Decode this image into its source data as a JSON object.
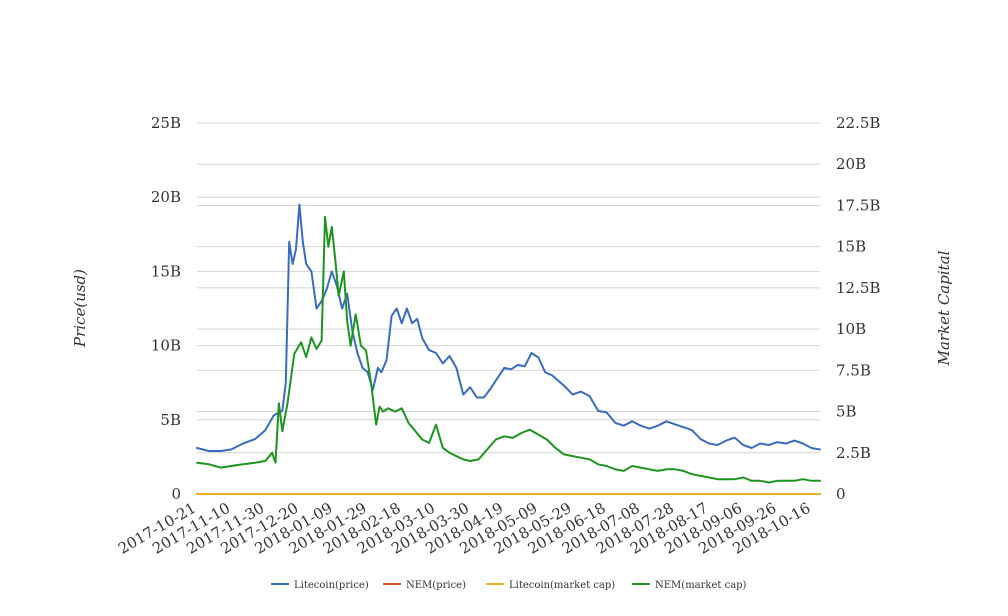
{
  "chart_data": {
    "type": "line",
    "title": "",
    "ylabel": "Price(usd)",
    "y2label": "Market Capital",
    "ylim": [
      0,
      25000000000
    ],
    "y2lim": [
      0,
      22500000000
    ],
    "yticks": [
      "0",
      "5B",
      "10B",
      "15B",
      "20B",
      "25B"
    ],
    "y2ticks": [
      "0",
      "2.5B",
      "5B",
      "7.5B",
      "10B",
      "12.5B",
      "15B",
      "17.5B",
      "20B",
      "22.5B"
    ],
    "xticks": [
      "2017-10-21",
      "2017-11-10",
      "2017-11-30",
      "2017-12-20",
      "2018-01-09",
      "2018-01-29",
      "2018-02-18",
      "2018-03-10",
      "2018-03-30",
      "2018-04-19",
      "2018-05-09",
      "2018-05-29",
      "2018-06-18",
      "2018-07-08",
      "2018-07-28",
      "2018-08-17",
      "2018-09-06",
      "2018-09-26",
      "2018-10-16"
    ],
    "xrange": [
      "2017-10-21",
      "2018-10-21"
    ],
    "grid": true,
    "legend_position": "bottom",
    "series": [
      {
        "name": "Litecoin(price)",
        "color": "#3a6cc4",
        "axis": "left",
        "x": [
          "2017-10-21",
          "2017-10-28",
          "2017-11-04",
          "2017-11-10",
          "2017-11-17",
          "2017-11-24",
          "2017-11-30",
          "2017-12-05",
          "2017-12-10",
          "2017-12-12",
          "2017-12-14",
          "2017-12-16",
          "2017-12-18",
          "2017-12-20",
          "2017-12-22",
          "2017-12-24",
          "2017-12-27",
          "2017-12-30",
          "2018-01-02",
          "2018-01-05",
          "2018-01-08",
          "2018-01-11",
          "2018-01-14",
          "2018-01-17",
          "2018-01-20",
          "2018-01-23",
          "2018-01-26",
          "2018-01-29",
          "2018-02-01",
          "2018-02-04",
          "2018-02-06",
          "2018-02-09",
          "2018-02-12",
          "2018-02-15",
          "2018-02-18",
          "2018-02-21",
          "2018-02-24",
          "2018-02-27",
          "2018-03-02",
          "2018-03-06",
          "2018-03-10",
          "2018-03-14",
          "2018-03-18",
          "2018-03-22",
          "2018-03-26",
          "2018-03-30",
          "2018-04-03",
          "2018-04-07",
          "2018-04-11",
          "2018-04-15",
          "2018-04-19",
          "2018-04-23",
          "2018-04-27",
          "2018-05-01",
          "2018-05-05",
          "2018-05-09",
          "2018-05-13",
          "2018-05-17",
          "2018-05-21",
          "2018-05-25",
          "2018-05-29",
          "2018-06-03",
          "2018-06-08",
          "2018-06-13",
          "2018-06-18",
          "2018-06-23",
          "2018-06-28",
          "2018-07-03",
          "2018-07-08",
          "2018-07-13",
          "2018-07-18",
          "2018-07-23",
          "2018-07-28",
          "2018-08-02",
          "2018-08-07",
          "2018-08-12",
          "2018-08-17",
          "2018-08-22",
          "2018-08-27",
          "2018-09-01",
          "2018-09-06",
          "2018-09-11",
          "2018-09-16",
          "2018-09-21",
          "2018-09-26",
          "2018-10-01",
          "2018-10-06",
          "2018-10-11",
          "2018-10-16",
          "2018-10-21"
        ],
        "values": [
          3100000000,
          2900000000,
          2900000000,
          3000000000,
          3400000000,
          3700000000,
          4300000000,
          5300000000,
          5600000000,
          7500000000,
          17000000000,
          15500000000,
          16500000000,
          19500000000,
          17000000000,
          15500000000,
          15000000000,
          12500000000,
          13000000000,
          13800000000,
          15000000000,
          14000000000,
          12500000000,
          13500000000,
          11000000000,
          9500000000,
          8500000000,
          8200000000,
          7000000000,
          8500000000,
          8200000000,
          9000000000,
          12000000000,
          12500000000,
          11500000000,
          12500000000,
          11500000000,
          11800000000,
          10500000000,
          9700000000,
          9500000000,
          8800000000,
          9300000000,
          8500000000,
          6700000000,
          7200000000,
          6500000000,
          6500000000,
          7100000000,
          7800000000,
          8500000000,
          8400000000,
          8700000000,
          8600000000,
          9500000000,
          9200000000,
          8200000000,
          8000000000,
          7600000000,
          7200000000,
          6700000000,
          6900000000,
          6600000000,
          5600000000,
          5500000000,
          4800000000,
          4600000000,
          4900000000,
          4600000000,
          4400000000,
          4600000000,
          4900000000,
          4700000000,
          4500000000,
          4300000000,
          3700000000,
          3400000000,
          3300000000,
          3600000000,
          3800000000,
          3300000000,
          3100000000,
          3400000000,
          3300000000,
          3500000000,
          3400000000,
          3600000000,
          3400000000,
          3100000000,
          3000000000
        ]
      },
      {
        "name": "NEM(price)",
        "color": "#d9541e",
        "axis": "left",
        "x": [
          "2017-10-21",
          "2018-10-21"
        ],
        "values": [
          0,
          0
        ]
      },
      {
        "name": "Litecoin(market cap)",
        "color": "#edb120",
        "axis": "right",
        "x": [
          "2017-10-21",
          "2018-10-21"
        ],
        "values": [
          0,
          0
        ]
      },
      {
        "name": "NEM(market cap)",
        "color": "#1e9420",
        "axis": "right",
        "x": [
          "2017-10-21",
          "2017-10-28",
          "2017-11-04",
          "2017-11-10",
          "2017-11-17",
          "2017-11-24",
          "2017-11-30",
          "2017-12-04",
          "2017-12-06",
          "2017-12-08",
          "2017-12-10",
          "2017-12-13",
          "2017-12-17",
          "2017-12-21",
          "2017-12-24",
          "2017-12-27",
          "2017-12-30",
          "2018-01-02",
          "2018-01-04",
          "2018-01-06",
          "2018-01-08",
          "2018-01-10",
          "2018-01-12",
          "2018-01-15",
          "2018-01-17",
          "2018-01-19",
          "2018-01-22",
          "2018-01-25",
          "2018-01-28",
          "2018-01-31",
          "2018-02-03",
          "2018-02-05",
          "2018-02-07",
          "2018-02-10",
          "2018-02-14",
          "2018-02-18",
          "2018-02-22",
          "2018-02-26",
          "2018-03-02",
          "2018-03-06",
          "2018-03-10",
          "2018-03-14",
          "2018-03-18",
          "2018-03-22",
          "2018-03-26",
          "2018-03-30",
          "2018-04-04",
          "2018-04-09",
          "2018-04-14",
          "2018-04-19",
          "2018-04-24",
          "2018-04-29",
          "2018-05-04",
          "2018-05-09",
          "2018-05-14",
          "2018-05-19",
          "2018-05-24",
          "2018-05-29",
          "2018-06-03",
          "2018-06-08",
          "2018-06-13",
          "2018-06-18",
          "2018-06-23",
          "2018-06-28",
          "2018-07-03",
          "2018-07-08",
          "2018-07-13",
          "2018-07-18",
          "2018-07-23",
          "2018-07-28",
          "2018-08-02",
          "2018-08-07",
          "2018-08-12",
          "2018-08-17",
          "2018-08-22",
          "2018-08-27",
          "2018-09-01",
          "2018-09-06",
          "2018-09-11",
          "2018-09-16",
          "2018-09-21",
          "2018-09-26",
          "2018-10-01",
          "2018-10-06",
          "2018-10-11",
          "2018-10-16",
          "2018-10-21"
        ],
        "values": [
          1900000000,
          1800000000,
          1600000000,
          1700000000,
          1800000000,
          1900000000,
          2000000000,
          2500000000,
          1900000000,
          5500000000,
          3800000000,
          5500000000,
          8500000000,
          9200000000,
          8300000000,
          9500000000,
          8800000000,
          9300000000,
          16800000000,
          15000000000,
          16200000000,
          14200000000,
          12000000000,
          13500000000,
          10500000000,
          9000000000,
          10900000000,
          9000000000,
          8700000000,
          6700000000,
          4200000000,
          5300000000,
          5000000000,
          5200000000,
          5000000000,
          5200000000,
          4300000000,
          3800000000,
          3300000000,
          3100000000,
          4200000000,
          2800000000,
          2500000000,
          2300000000,
          2100000000,
          2000000000,
          2100000000,
          2700000000,
          3300000000,
          3500000000,
          3400000000,
          3700000000,
          3900000000,
          3600000000,
          3300000000,
          2800000000,
          2400000000,
          2300000000,
          2200000000,
          2100000000,
          1800000000,
          1700000000,
          1500000000,
          1400000000,
          1700000000,
          1600000000,
          1500000000,
          1400000000,
          1500000000,
          1500000000,
          1400000000,
          1200000000,
          1100000000,
          1000000000,
          900000000,
          900000000,
          900000000,
          1000000000,
          800000000,
          800000000,
          700000000,
          800000000,
          800000000,
          800000000,
          900000000,
          800000000,
          800000000
        ]
      }
    ]
  }
}
